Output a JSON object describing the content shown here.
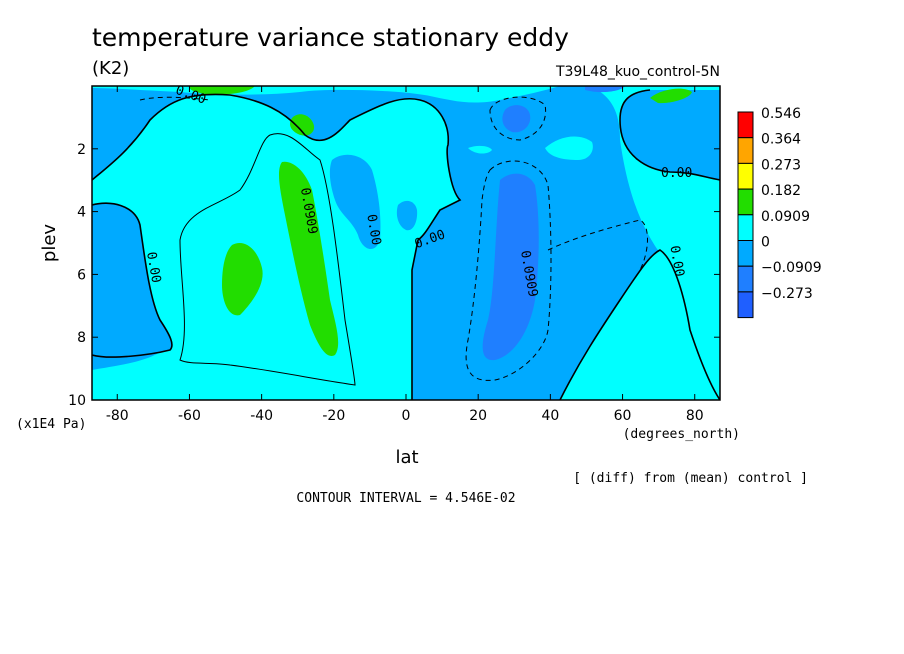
{
  "chart_data": {
    "type": "contour",
    "title": "temperature variance stationary eddy",
    "units": "(K2)",
    "run_label": "T39L48_kuo_control-5N",
    "xlabel": "lat",
    "x_units": "(degrees_north)",
    "ylabel": "plev",
    "y_units": "(x1E4 Pa)",
    "xlim": [
      -87,
      87
    ],
    "ylim": [
      10,
      0
    ],
    "x_ticks": [
      -80,
      -60,
      -40,
      -20,
      0,
      20,
      40,
      60,
      80
    ],
    "x_tick_labels": [
      "-80",
      "-60",
      "-40",
      "-20",
      "0",
      "20",
      "40",
      "60",
      "80"
    ],
    "y_ticks": [
      2,
      4,
      6,
      8,
      10
    ],
    "y_tick_labels": [
      "2",
      "4",
      "6",
      "8",
      "10"
    ],
    "note": "[ (diff) from (mean) control ]",
    "contour_interval_text": "CONTOUR INTERVAL = 4.546E-02",
    "legend": [
      {
        "label": "0.546",
        "color": "#ff0000"
      },
      {
        "label": "0.364",
        "color": "#ffa500"
      },
      {
        "label": "0.273",
        "color": "#ffff00"
      },
      {
        "label": "0.182",
        "color": "#22dd00"
      },
      {
        "label": "0.0909",
        "color": "#00ffff"
      },
      {
        "label": "0",
        "color": "#00aaff"
      },
      {
        "label": "−0.0909",
        "color": "#1f7fff"
      },
      {
        "label": "−0.273",
        "color": "#1f5fff"
      }
    ],
    "contour_labels": [
      {
        "text": "0.00",
        "lat": -60,
        "plev": 0.4
      },
      {
        "text": "0.0909",
        "lat": -28,
        "plev": 4.0
      },
      {
        "text": "0.00",
        "lat": -10,
        "plev": 4.6
      },
      {
        "text": "0.00",
        "lat": 7,
        "plev": 5.0
      },
      {
        "text": "0.00",
        "lat": -71,
        "plev": 5.8
      },
      {
        "text": "0.0909",
        "lat": 33,
        "plev": 6.0
      },
      {
        "text": "0.00",
        "lat": 75,
        "plev": 2.9
      },
      {
        "text": "0.00",
        "lat": 74,
        "plev": 5.6
      }
    ]
  }
}
